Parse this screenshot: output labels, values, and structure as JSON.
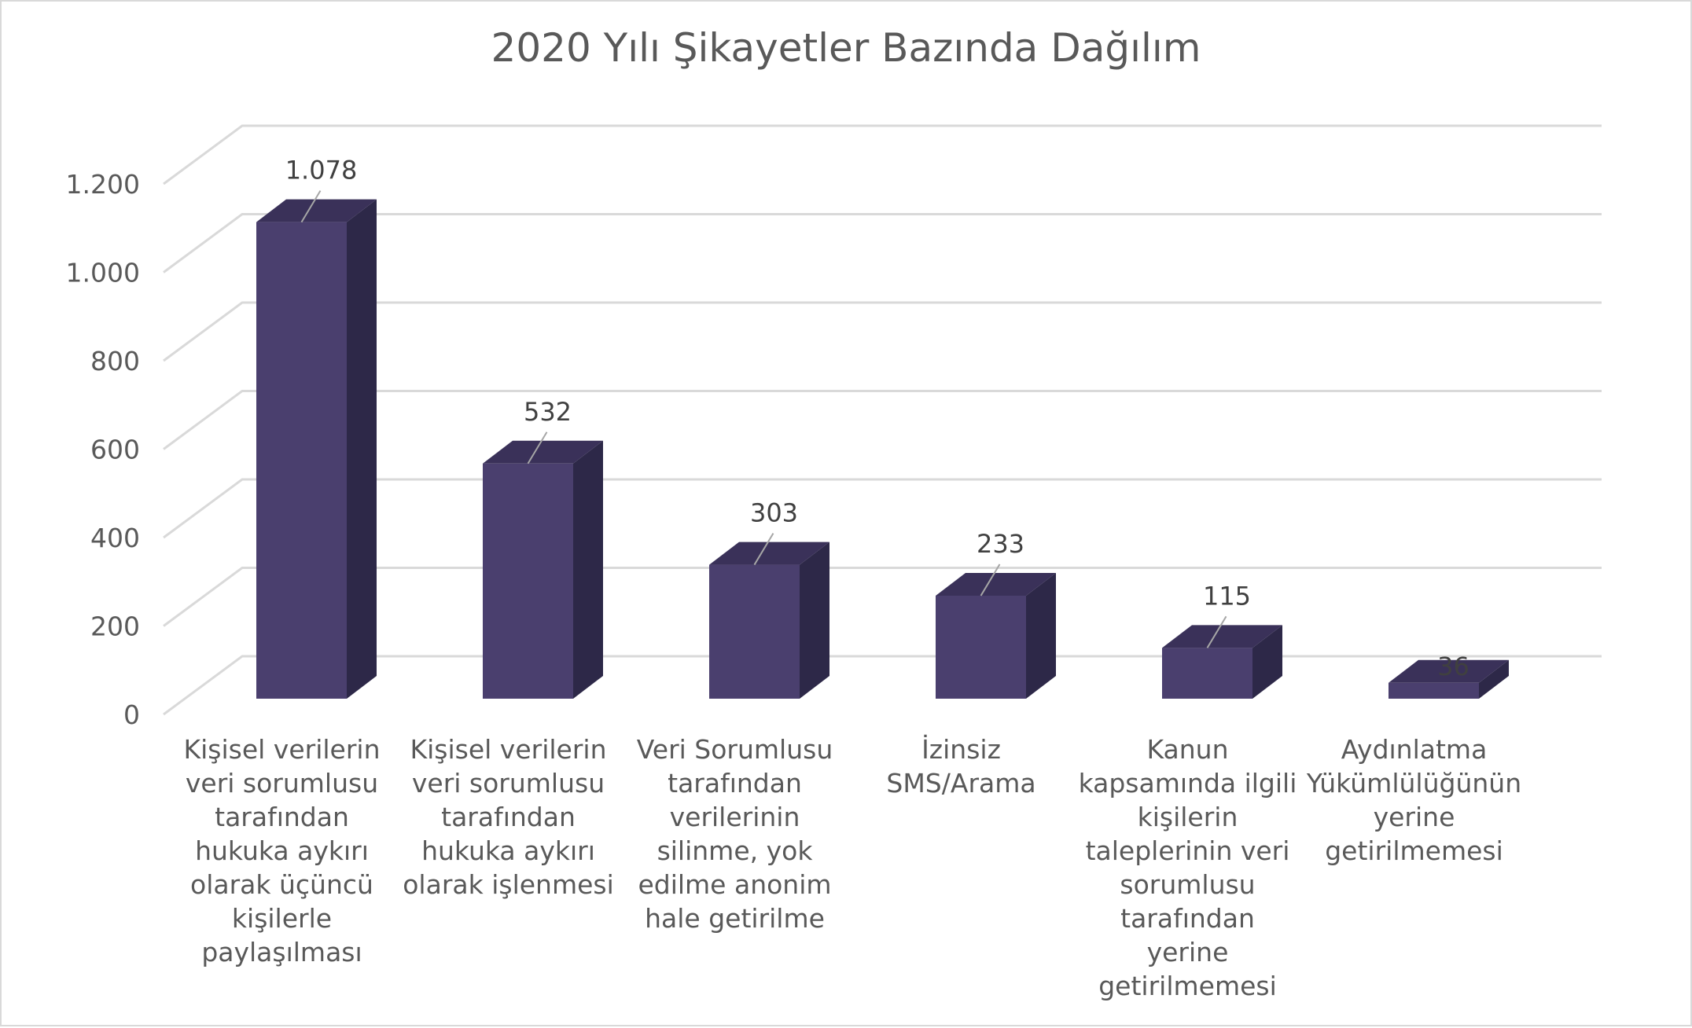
{
  "chart_data": {
    "type": "bar",
    "style": "3d-column",
    "title": "2020 Yılı Şikayetler Bazında Dağılım",
    "xlabel": "",
    "ylabel": "",
    "ylim": [
      0,
      1200
    ],
    "yticks": [
      0,
      200,
      400,
      600,
      800,
      1000,
      1200
    ],
    "ytick_labels": [
      "0",
      "200",
      "400",
      "600",
      "800",
      "1.000",
      "1.200"
    ],
    "grid": true,
    "categories": [
      [
        "Kişisel verilerin",
        "veri sorumlusu",
        "tarafından",
        "hukuka aykırı",
        "olarak üçüncü",
        "kişilerle",
        "paylaşılması"
      ],
      [
        "Kişisel verilerin",
        "veri sorumlusu",
        "tarafından",
        "hukuka aykırı",
        "olarak işlenmesi"
      ],
      [
        "Veri Sorumlusu",
        "tarafından",
        "verilerinin",
        "silinme, yok",
        "edilme anonim",
        "hale getirilme"
      ],
      [
        "İzinsiz",
        "SMS/Arama"
      ],
      [
        "Kanun",
        "kapsamında ilgili",
        "kişilerin",
        "taleplerinin veri",
        "sorumlusu",
        "tarafından",
        "yerine",
        "getirilmemesi"
      ],
      [
        "Aydınlatma",
        "Yükümlülüğünün",
        "yerine",
        "getirilmemesi"
      ]
    ],
    "values": [
      1078,
      532,
      303,
      233,
      115,
      36
    ],
    "data_labels": [
      "1.078",
      "532",
      "303",
      "233",
      "115",
      "36"
    ],
    "colors": {
      "front": "#4a3f6e",
      "side": "#2d2848",
      "top": "#3a3159",
      "grid": "#d9d9d9",
      "text": "#595959",
      "label": "#404040"
    }
  }
}
